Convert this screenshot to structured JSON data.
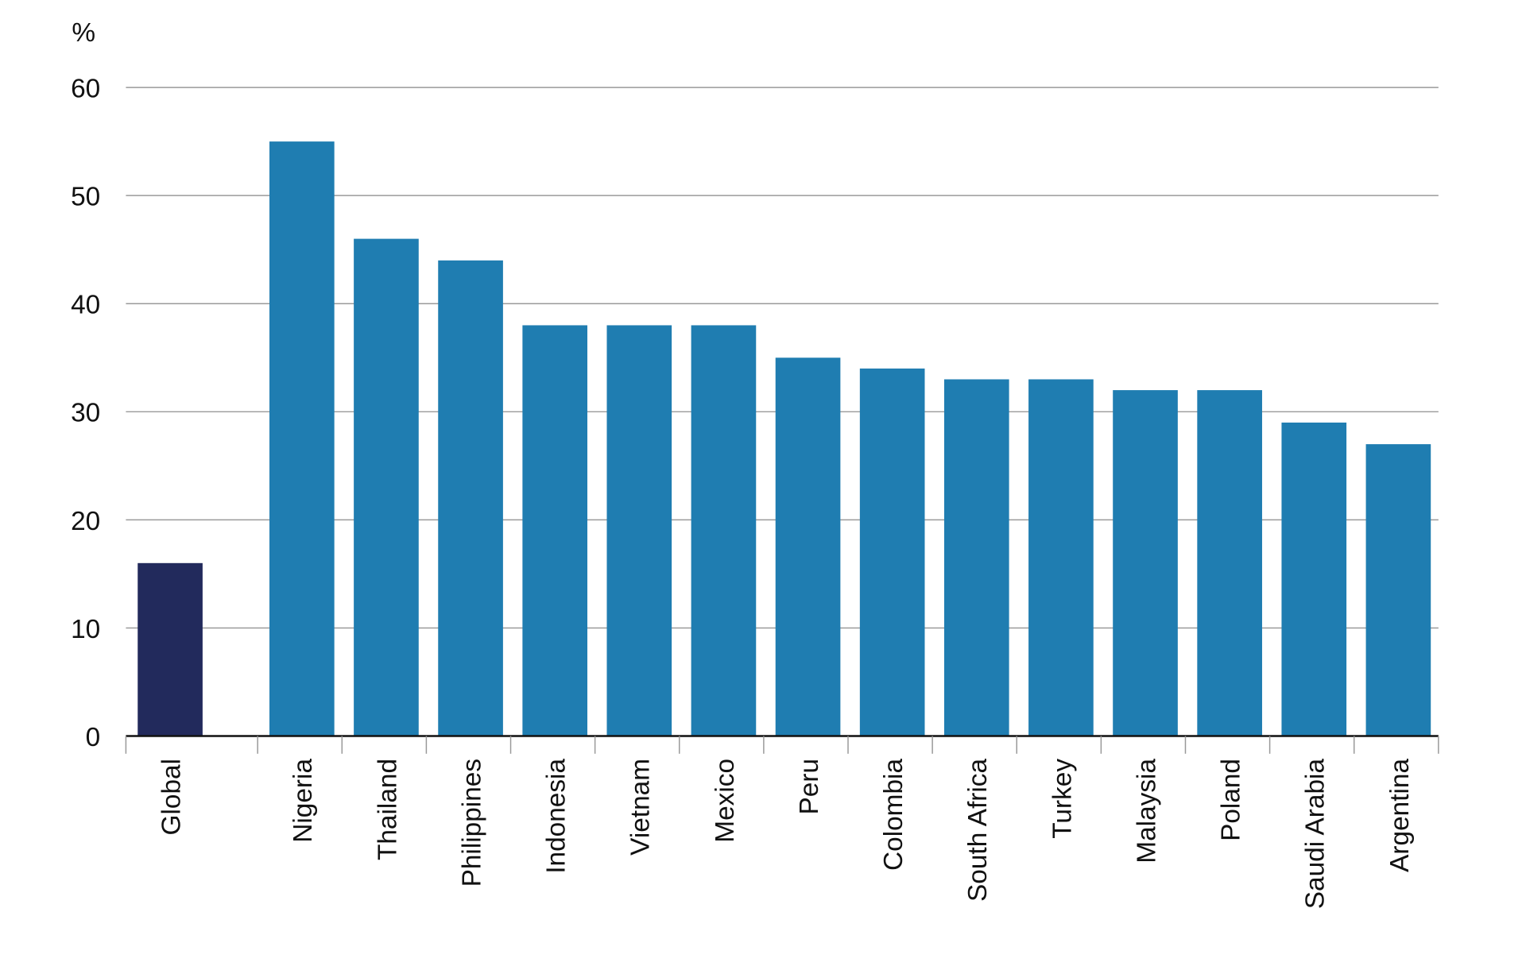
{
  "chart_data": {
    "type": "bar",
    "y_label": "%",
    "categories": [
      "Global",
      "Nigeria",
      "Thailand",
      "Philippines",
      "Indonesia",
      "Vietnam",
      "Mexico",
      "Peru",
      "Colombia",
      "South Africa",
      "Turkey",
      "Malaysia",
      "Poland",
      "Saudi Arabia",
      "Argentina"
    ],
    "values": [
      16,
      55,
      46,
      44,
      38,
      38,
      38,
      35,
      34,
      33,
      33,
      32,
      32,
      29,
      27
    ],
    "colors": [
      "#222a5c",
      "#1f7db1",
      "#1f7db1",
      "#1f7db1",
      "#1f7db1",
      "#1f7db1",
      "#1f7db1",
      "#1f7db1",
      "#1f7db1",
      "#1f7db1",
      "#1f7db1",
      "#1f7db1",
      "#1f7db1",
      "#1f7db1",
      "#1f7db1"
    ],
    "ylim": [
      0,
      60
    ],
    "yticks": [
      0,
      10,
      20,
      30,
      40,
      50,
      60
    ],
    "grid": true
  }
}
